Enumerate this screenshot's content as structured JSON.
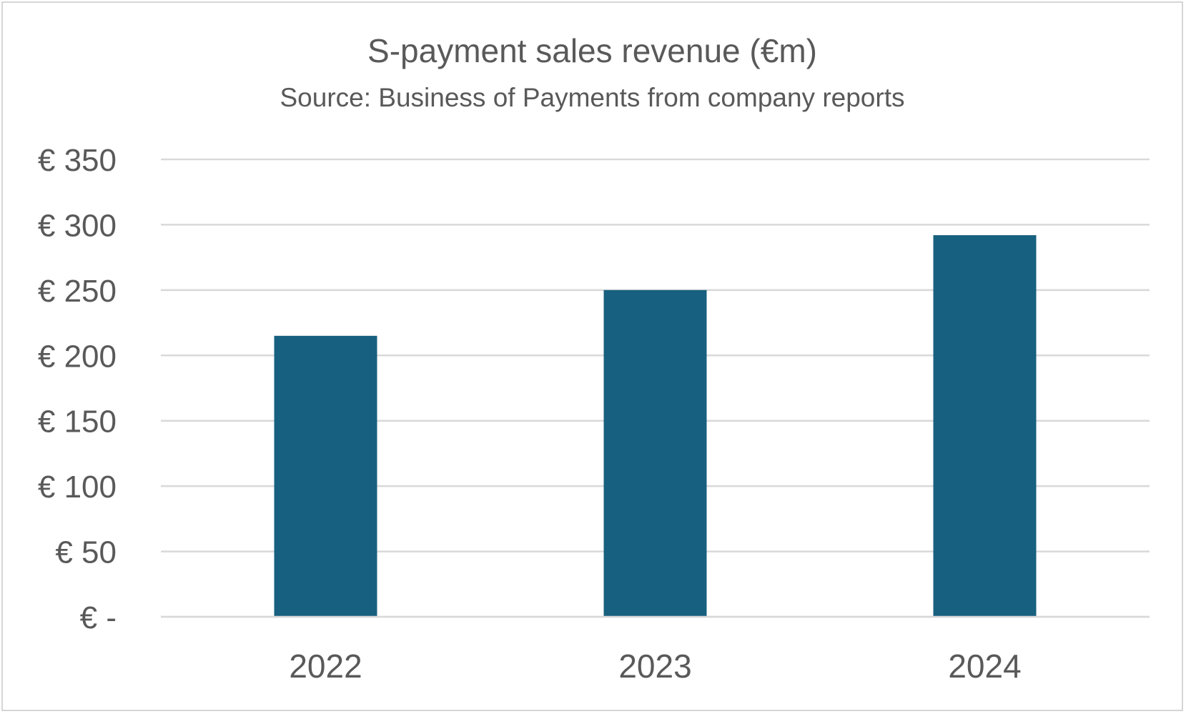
{
  "chart_data": {
    "type": "bar",
    "title": "S-payment sales revenue (€m)",
    "subtitle": "Source: Business of Payments from company reports",
    "categories": [
      "2022",
      "2023",
      "2024"
    ],
    "values": [
      215,
      250,
      292
    ],
    "ylim": [
      0,
      350
    ],
    "yticks": [
      0,
      50,
      100,
      150,
      200,
      250,
      300,
      350
    ],
    "ytick_labels": [
      "€ -",
      "€ 50",
      "€ 100",
      "€ 150",
      "€ 200",
      "€ 250",
      "€ 300",
      "€ 350"
    ],
    "xlabel": "",
    "ylabel": "",
    "grid": true,
    "legend": "none",
    "bar_color": "#18607F",
    "grid_color": "#d9d9d9"
  }
}
